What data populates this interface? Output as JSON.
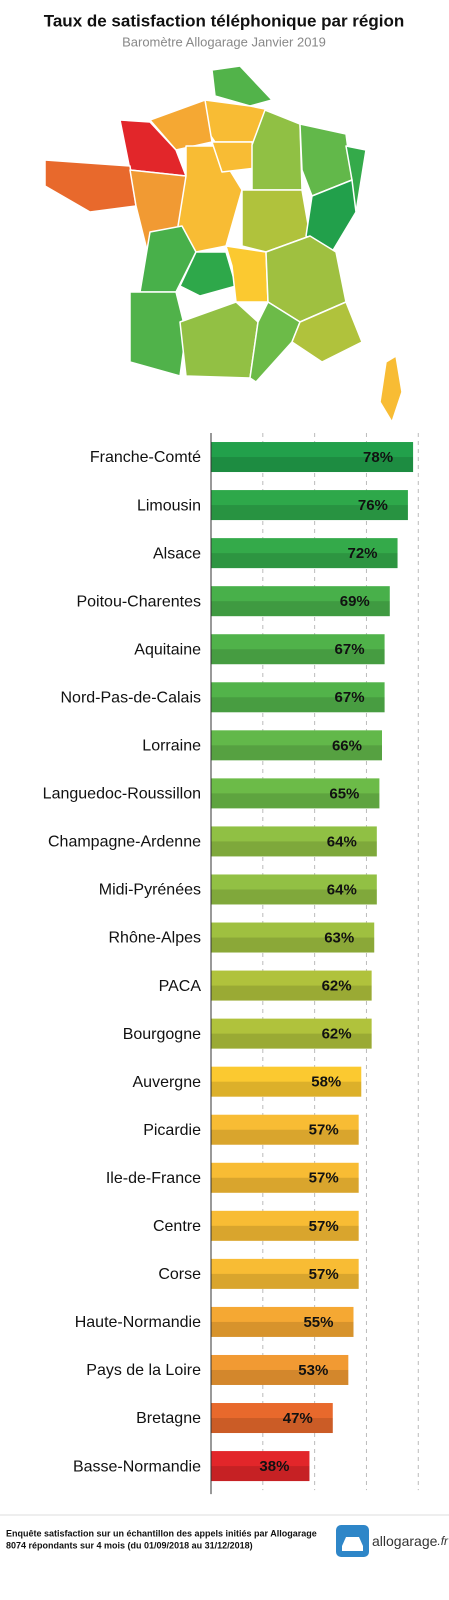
{
  "chart_data": {
    "type": "bar",
    "orientation": "horizontal",
    "title": "Taux de satisfaction téléphonique par région",
    "subtitle": "Baromètre Allogarage Janvier 2019",
    "categories": [
      "Franche-Comté",
      "Limousin",
      "Alsace",
      "Poitou-Charentes",
      "Aquitaine",
      "Nord-Pas-de-Calais",
      "Lorraine",
      "Languedoc-Roussillon",
      "Champagne-Ardenne",
      "Midi-Pyrénées",
      "Rhône-Alpes",
      "PACA",
      "Bourgogne",
      "Auvergne",
      "Picardie",
      "Ile-de-France",
      "Centre",
      "Corse",
      "Haute-Normandie",
      "Pays de la Loire",
      "Bretagne",
      "Basse-Normandie"
    ],
    "values": [
      78,
      76,
      72,
      69,
      67,
      67,
      66,
      65,
      64,
      64,
      63,
      62,
      62,
      58,
      57,
      57,
      57,
      57,
      55,
      53,
      47,
      38
    ],
    "value_labels": [
      "78%",
      "76%",
      "72%",
      "69%",
      "67%",
      "67%",
      "66%",
      "65%",
      "64%",
      "64%",
      "63%",
      "62%",
      "62%",
      "58%",
      "57%",
      "57%",
      "57%",
      "57%",
      "55%",
      "53%",
      "47%",
      "38%"
    ],
    "colors": [
      "#22a04b",
      "#2ea84a",
      "#34aa4a",
      "#48b04a",
      "#50b24a",
      "#52b34a",
      "#62b84a",
      "#6cbb48",
      "#90c044",
      "#92c044",
      "#9fc040",
      "#b0c23c",
      "#b0c23c",
      "#fbc930",
      "#f8bc34",
      "#f8bc34",
      "#f8bc34",
      "#f8bc34",
      "#f5a833",
      "#f19a33",
      "#e8692c",
      "#e2262a"
    ],
    "xlim": [
      0,
      88
    ],
    "xticks": [
      20,
      40,
      60,
      80
    ],
    "grid": true
  },
  "footer": {
    "note": [
      "Enquête satisfaction sur un échantillon des appels initiés par Allogarage",
      "8074 répondants sur 4 mois (du 01/09/2018 au 31/12/2018)"
    ],
    "logo": [
      "allogarage",
      ".fr"
    ]
  }
}
